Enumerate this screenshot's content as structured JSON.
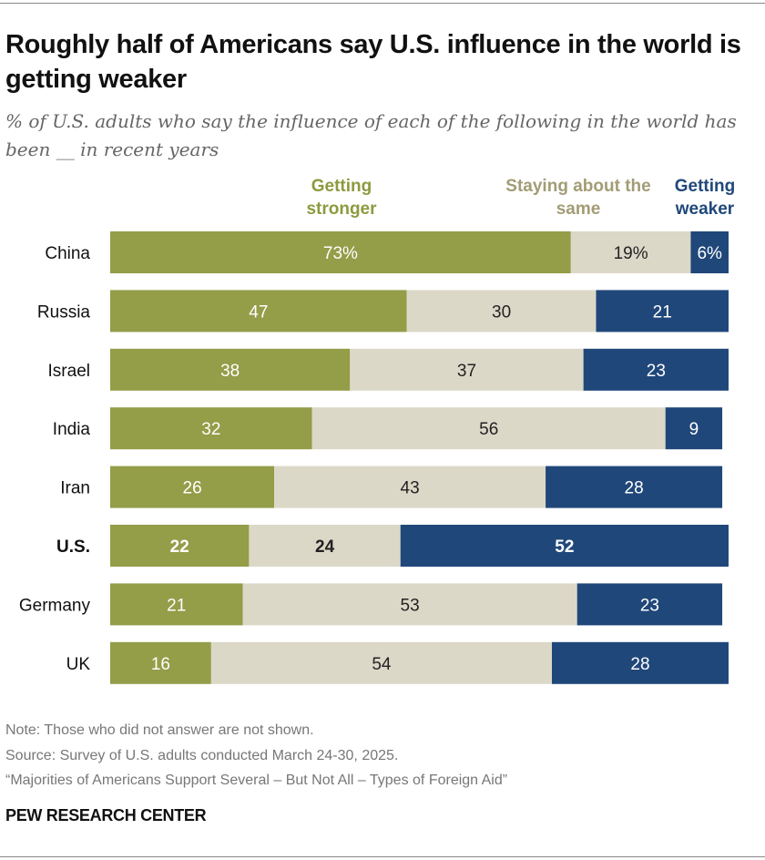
{
  "title": "Roughly half of Americans say U.S. influence in the world is getting weaker",
  "subtitle": "% of U.S. adults who say the influence of each of the following in the world has been __ in recent years",
  "colors": {
    "stronger": "#949d48",
    "same": "#dcd8c8",
    "weaker": "#20477a",
    "legend_stronger": "#8d9a3e",
    "legend_same": "#a29c75",
    "legend_weaker": "#20477a"
  },
  "chart_data": {
    "type": "bar",
    "orientation": "horizontal-stacked",
    "categories": [
      "China",
      "Russia",
      "Israel",
      "India",
      "Iran",
      "U.S.",
      "Germany",
      "UK"
    ],
    "highlight": "U.S.",
    "series": [
      {
        "name": "Getting stronger",
        "values": [
          73,
          47,
          38,
          32,
          26,
          22,
          21,
          16
        ]
      },
      {
        "name": "Staying about the same",
        "values": [
          19,
          30,
          37,
          56,
          43,
          24,
          53,
          54
        ]
      },
      {
        "name": "Getting weaker",
        "values": [
          6,
          21,
          23,
          9,
          28,
          52,
          23,
          28
        ]
      }
    ],
    "labels": [
      [
        "73%",
        "19%",
        "6%"
      ],
      [
        "47",
        "30",
        "21"
      ],
      [
        "38",
        "37",
        "23"
      ],
      [
        "32",
        "56",
        "9"
      ],
      [
        "26",
        "43",
        "28"
      ],
      [
        "22",
        "24",
        "52"
      ],
      [
        "21",
        "53",
        "23"
      ],
      [
        "16",
        "54",
        "28"
      ]
    ],
    "xlim": [
      0,
      98
    ],
    "legend_placement": "top"
  },
  "legend": {
    "stronger": "Getting stronger",
    "same": "Staying about the same",
    "weaker": "Getting weaker"
  },
  "footer": {
    "note": "Note: Those who did not answer are not shown.",
    "source": "Source: Survey of U.S. adults conducted March 24-30, 2025.",
    "report": "“Majorities of Americans Support Several – But Not All – Types of Foreign Aid”",
    "brand": "PEW RESEARCH CENTER"
  }
}
